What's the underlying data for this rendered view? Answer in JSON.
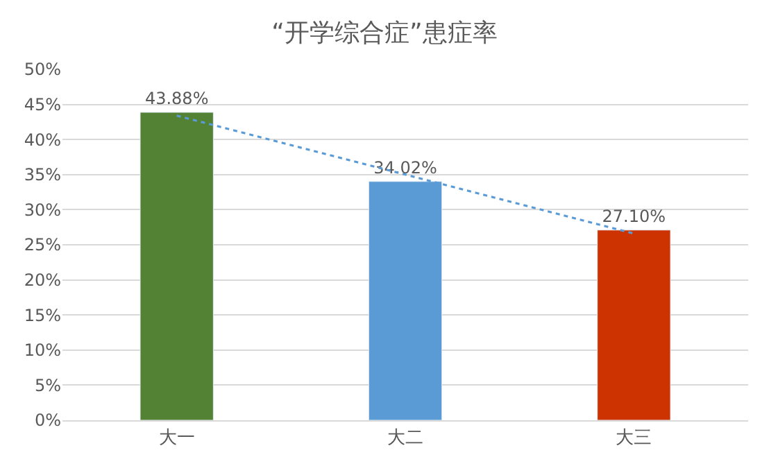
{
  "chart_data": {
    "type": "bar",
    "title": "“开学综合症”患症率",
    "categories": [
      "大一",
      "大二",
      "大三"
    ],
    "series": [
      {
        "colors": [
          "#548235",
          "#5b9bd5",
          "#cc3300"
        ],
        "values": [
          43.88,
          34.02,
          27.1
        ],
        "value_labels": [
          "43.88%",
          "34.02%",
          "27.10%"
        ]
      },
      {
        "type": "line",
        "color": "#5b9bd5",
        "line_style": "dotted",
        "marker": "none",
        "values": [
          43.4,
          35.0,
          26.6
        ]
      }
    ],
    "ylim": [
      0,
      50
    ],
    "yticks": [
      {
        "value": 0,
        "label": "0%"
      },
      {
        "value": 5,
        "label": "5%"
      },
      {
        "value": 10,
        "label": "10%"
      },
      {
        "value": 15,
        "label": "15%"
      },
      {
        "value": 20,
        "label": "20%"
      },
      {
        "value": 25,
        "label": "25%"
      },
      {
        "value": 30,
        "label": "30%"
      },
      {
        "value": 35,
        "label": "35%"
      },
      {
        "value": 40,
        "label": "40%"
      },
      {
        "value": 45,
        "label": "45%"
      },
      {
        "value": 50,
        "label": "50%"
      }
    ],
    "grid": "y"
  }
}
